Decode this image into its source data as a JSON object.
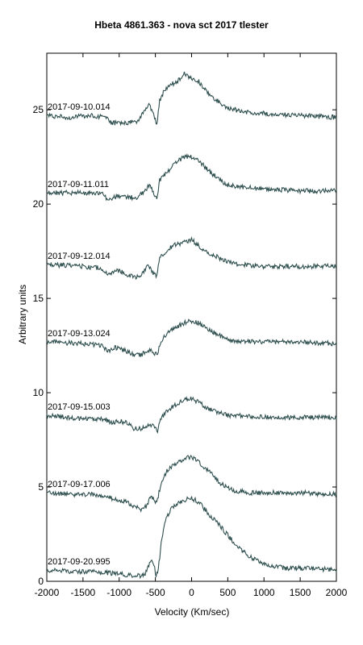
{
  "chart_data": {
    "type": "line",
    "title": "Hbeta 4861.363 - nova sct 2017   tlester",
    "xlabel": "Velocity (Km/sec)",
    "ylabel": "Arbitrary units",
    "xlim": [
      -2000,
      2000
    ],
    "ylim": [
      0,
      28
    ],
    "xticks": [
      -2000,
      -1500,
      -1000,
      -500,
      0,
      500,
      1000,
      1500,
      2000
    ],
    "yticks": [
      0,
      5,
      10,
      15,
      20,
      25
    ],
    "grid": false,
    "legend": "none",
    "line_color": "#2f4f4f",
    "series": [
      {
        "name": "2017-09-10.014",
        "points": [
          [
            -2000,
            24.7
          ],
          [
            -1700,
            24.6
          ],
          [
            -1400,
            24.7
          ],
          [
            -1200,
            24.6
          ],
          [
            -1100,
            24.3
          ],
          [
            -900,
            24.3
          ],
          [
            -750,
            24.4
          ],
          [
            -650,
            24.9
          ],
          [
            -580,
            25.3
          ],
          [
            -520,
            24.7
          ],
          [
            -480,
            24.2
          ],
          [
            -440,
            25.5
          ],
          [
            -380,
            26.0
          ],
          [
            -300,
            26.3
          ],
          [
            -200,
            26.5
          ],
          [
            -100,
            26.9
          ],
          [
            0,
            26.7
          ],
          [
            100,
            26.5
          ],
          [
            200,
            26.0
          ],
          [
            350,
            25.5
          ],
          [
            500,
            25.1
          ],
          [
            700,
            24.9
          ],
          [
            1000,
            24.8
          ],
          [
            1500,
            24.7
          ],
          [
            2000,
            24.6
          ]
        ]
      },
      {
        "name": "2017-09-11.011",
        "points": [
          [
            -2000,
            20.6
          ],
          [
            -1400,
            20.6
          ],
          [
            -1250,
            20.6
          ],
          [
            -1150,
            20.2
          ],
          [
            -1050,
            20.4
          ],
          [
            -900,
            20.4
          ],
          [
            -750,
            20.3
          ],
          [
            -650,
            20.7
          ],
          [
            -580,
            21.0
          ],
          [
            -520,
            20.6
          ],
          [
            -480,
            20.2
          ],
          [
            -440,
            21.3
          ],
          [
            -350,
            21.6
          ],
          [
            -250,
            22.1
          ],
          [
            -100,
            22.5
          ],
          [
            0,
            22.5
          ],
          [
            100,
            22.3
          ],
          [
            200,
            21.9
          ],
          [
            350,
            21.4
          ],
          [
            500,
            21.0
          ],
          [
            700,
            20.9
          ],
          [
            1000,
            20.8
          ],
          [
            1500,
            20.7
          ],
          [
            2000,
            20.7
          ]
        ]
      },
      {
        "name": "2017-09-12.014",
        "points": [
          [
            -2000,
            16.8
          ],
          [
            -1500,
            16.7
          ],
          [
            -1250,
            16.6
          ],
          [
            -1150,
            16.3
          ],
          [
            -1050,
            16.5
          ],
          [
            -900,
            16.3
          ],
          [
            -780,
            16.1
          ],
          [
            -680,
            16.3
          ],
          [
            -600,
            16.8
          ],
          [
            -540,
            16.4
          ],
          [
            -480,
            16.2
          ],
          [
            -440,
            17.1
          ],
          [
            -350,
            17.5
          ],
          [
            -250,
            17.8
          ],
          [
            -100,
            18.0
          ],
          [
            0,
            18.1
          ],
          [
            100,
            17.8
          ],
          [
            200,
            17.5
          ],
          [
            350,
            17.2
          ],
          [
            500,
            16.9
          ],
          [
            700,
            16.8
          ],
          [
            1000,
            16.7
          ],
          [
            1500,
            16.7
          ],
          [
            2000,
            16.7
          ]
        ]
      },
      {
        "name": "2017-09-13.024",
        "points": [
          [
            -2000,
            12.7
          ],
          [
            -1500,
            12.6
          ],
          [
            -1250,
            12.5
          ],
          [
            -1150,
            12.2
          ],
          [
            -1050,
            12.4
          ],
          [
            -900,
            12.2
          ],
          [
            -800,
            12.0
          ],
          [
            -700,
            12.0
          ],
          [
            -600,
            12.3
          ],
          [
            -520,
            12.1
          ],
          [
            -470,
            12.0
          ],
          [
            -430,
            12.7
          ],
          [
            -350,
            13.1
          ],
          [
            -250,
            13.4
          ],
          [
            -100,
            13.7
          ],
          [
            0,
            13.8
          ],
          [
            100,
            13.7
          ],
          [
            200,
            13.4
          ],
          [
            350,
            13.1
          ],
          [
            500,
            12.8
          ],
          [
            700,
            12.7
          ],
          [
            1000,
            12.7
          ],
          [
            1500,
            12.7
          ],
          [
            2000,
            12.6
          ]
        ]
      },
      {
        "name": "2017-09-15.003",
        "points": [
          [
            -2000,
            8.8
          ],
          [
            -1500,
            8.6
          ],
          [
            -1200,
            8.6
          ],
          [
            -1100,
            8.4
          ],
          [
            -1000,
            8.5
          ],
          [
            -900,
            8.4
          ],
          [
            -800,
            8.1
          ],
          [
            -700,
            8.1
          ],
          [
            -600,
            8.3
          ],
          [
            -520,
            8.2
          ],
          [
            -470,
            8.0
          ],
          [
            -430,
            8.6
          ],
          [
            -350,
            9.0
          ],
          [
            -250,
            9.3
          ],
          [
            -100,
            9.6
          ],
          [
            0,
            9.7
          ],
          [
            100,
            9.5
          ],
          [
            200,
            9.2
          ],
          [
            350,
            9.0
          ],
          [
            500,
            8.8
          ],
          [
            700,
            8.8
          ],
          [
            1000,
            8.7
          ],
          [
            1500,
            8.7
          ],
          [
            2000,
            8.7
          ]
        ]
      },
      {
        "name": "2017-09-17.006",
        "points": [
          [
            -2000,
            4.7
          ],
          [
            -1600,
            4.6
          ],
          [
            -1300,
            4.6
          ],
          [
            -1100,
            4.4
          ],
          [
            -900,
            4.2
          ],
          [
            -800,
            4.0
          ],
          [
            -700,
            3.8
          ],
          [
            -620,
            4.0
          ],
          [
            -560,
            4.6
          ],
          [
            -520,
            4.3
          ],
          [
            -480,
            4.2
          ],
          [
            -420,
            5.2
          ],
          [
            -350,
            5.8
          ],
          [
            -250,
            6.2
          ],
          [
            -100,
            6.5
          ],
          [
            0,
            6.6
          ],
          [
            100,
            6.3
          ],
          [
            250,
            5.8
          ],
          [
            400,
            5.2
          ],
          [
            600,
            4.8
          ],
          [
            800,
            4.7
          ],
          [
            1000,
            4.7
          ],
          [
            1500,
            4.7
          ],
          [
            2000,
            4.6
          ]
        ]
      },
      {
        "name": "2017-09-20.995",
        "points": [
          [
            -2000,
            0.6
          ],
          [
            -1600,
            0.5
          ],
          [
            -1300,
            0.5
          ],
          [
            -1000,
            0.4
          ],
          [
            -800,
            0.3
          ],
          [
            -700,
            0.3
          ],
          [
            -620,
            0.5
          ],
          [
            -560,
            1.2
          ],
          [
            -520,
            0.9
          ],
          [
            -490,
            0.3
          ],
          [
            -460,
            0.6
          ],
          [
            -420,
            2.0
          ],
          [
            -350,
            3.4
          ],
          [
            -250,
            4.0
          ],
          [
            -100,
            4.3
          ],
          [
            0,
            4.4
          ],
          [
            100,
            4.2
          ],
          [
            250,
            3.5
          ],
          [
            400,
            2.9
          ],
          [
            600,
            2.0
          ],
          [
            800,
            1.3
          ],
          [
            1000,
            0.9
          ],
          [
            1300,
            0.7
          ],
          [
            1600,
            0.7
          ],
          [
            2000,
            0.6
          ]
        ]
      }
    ]
  }
}
